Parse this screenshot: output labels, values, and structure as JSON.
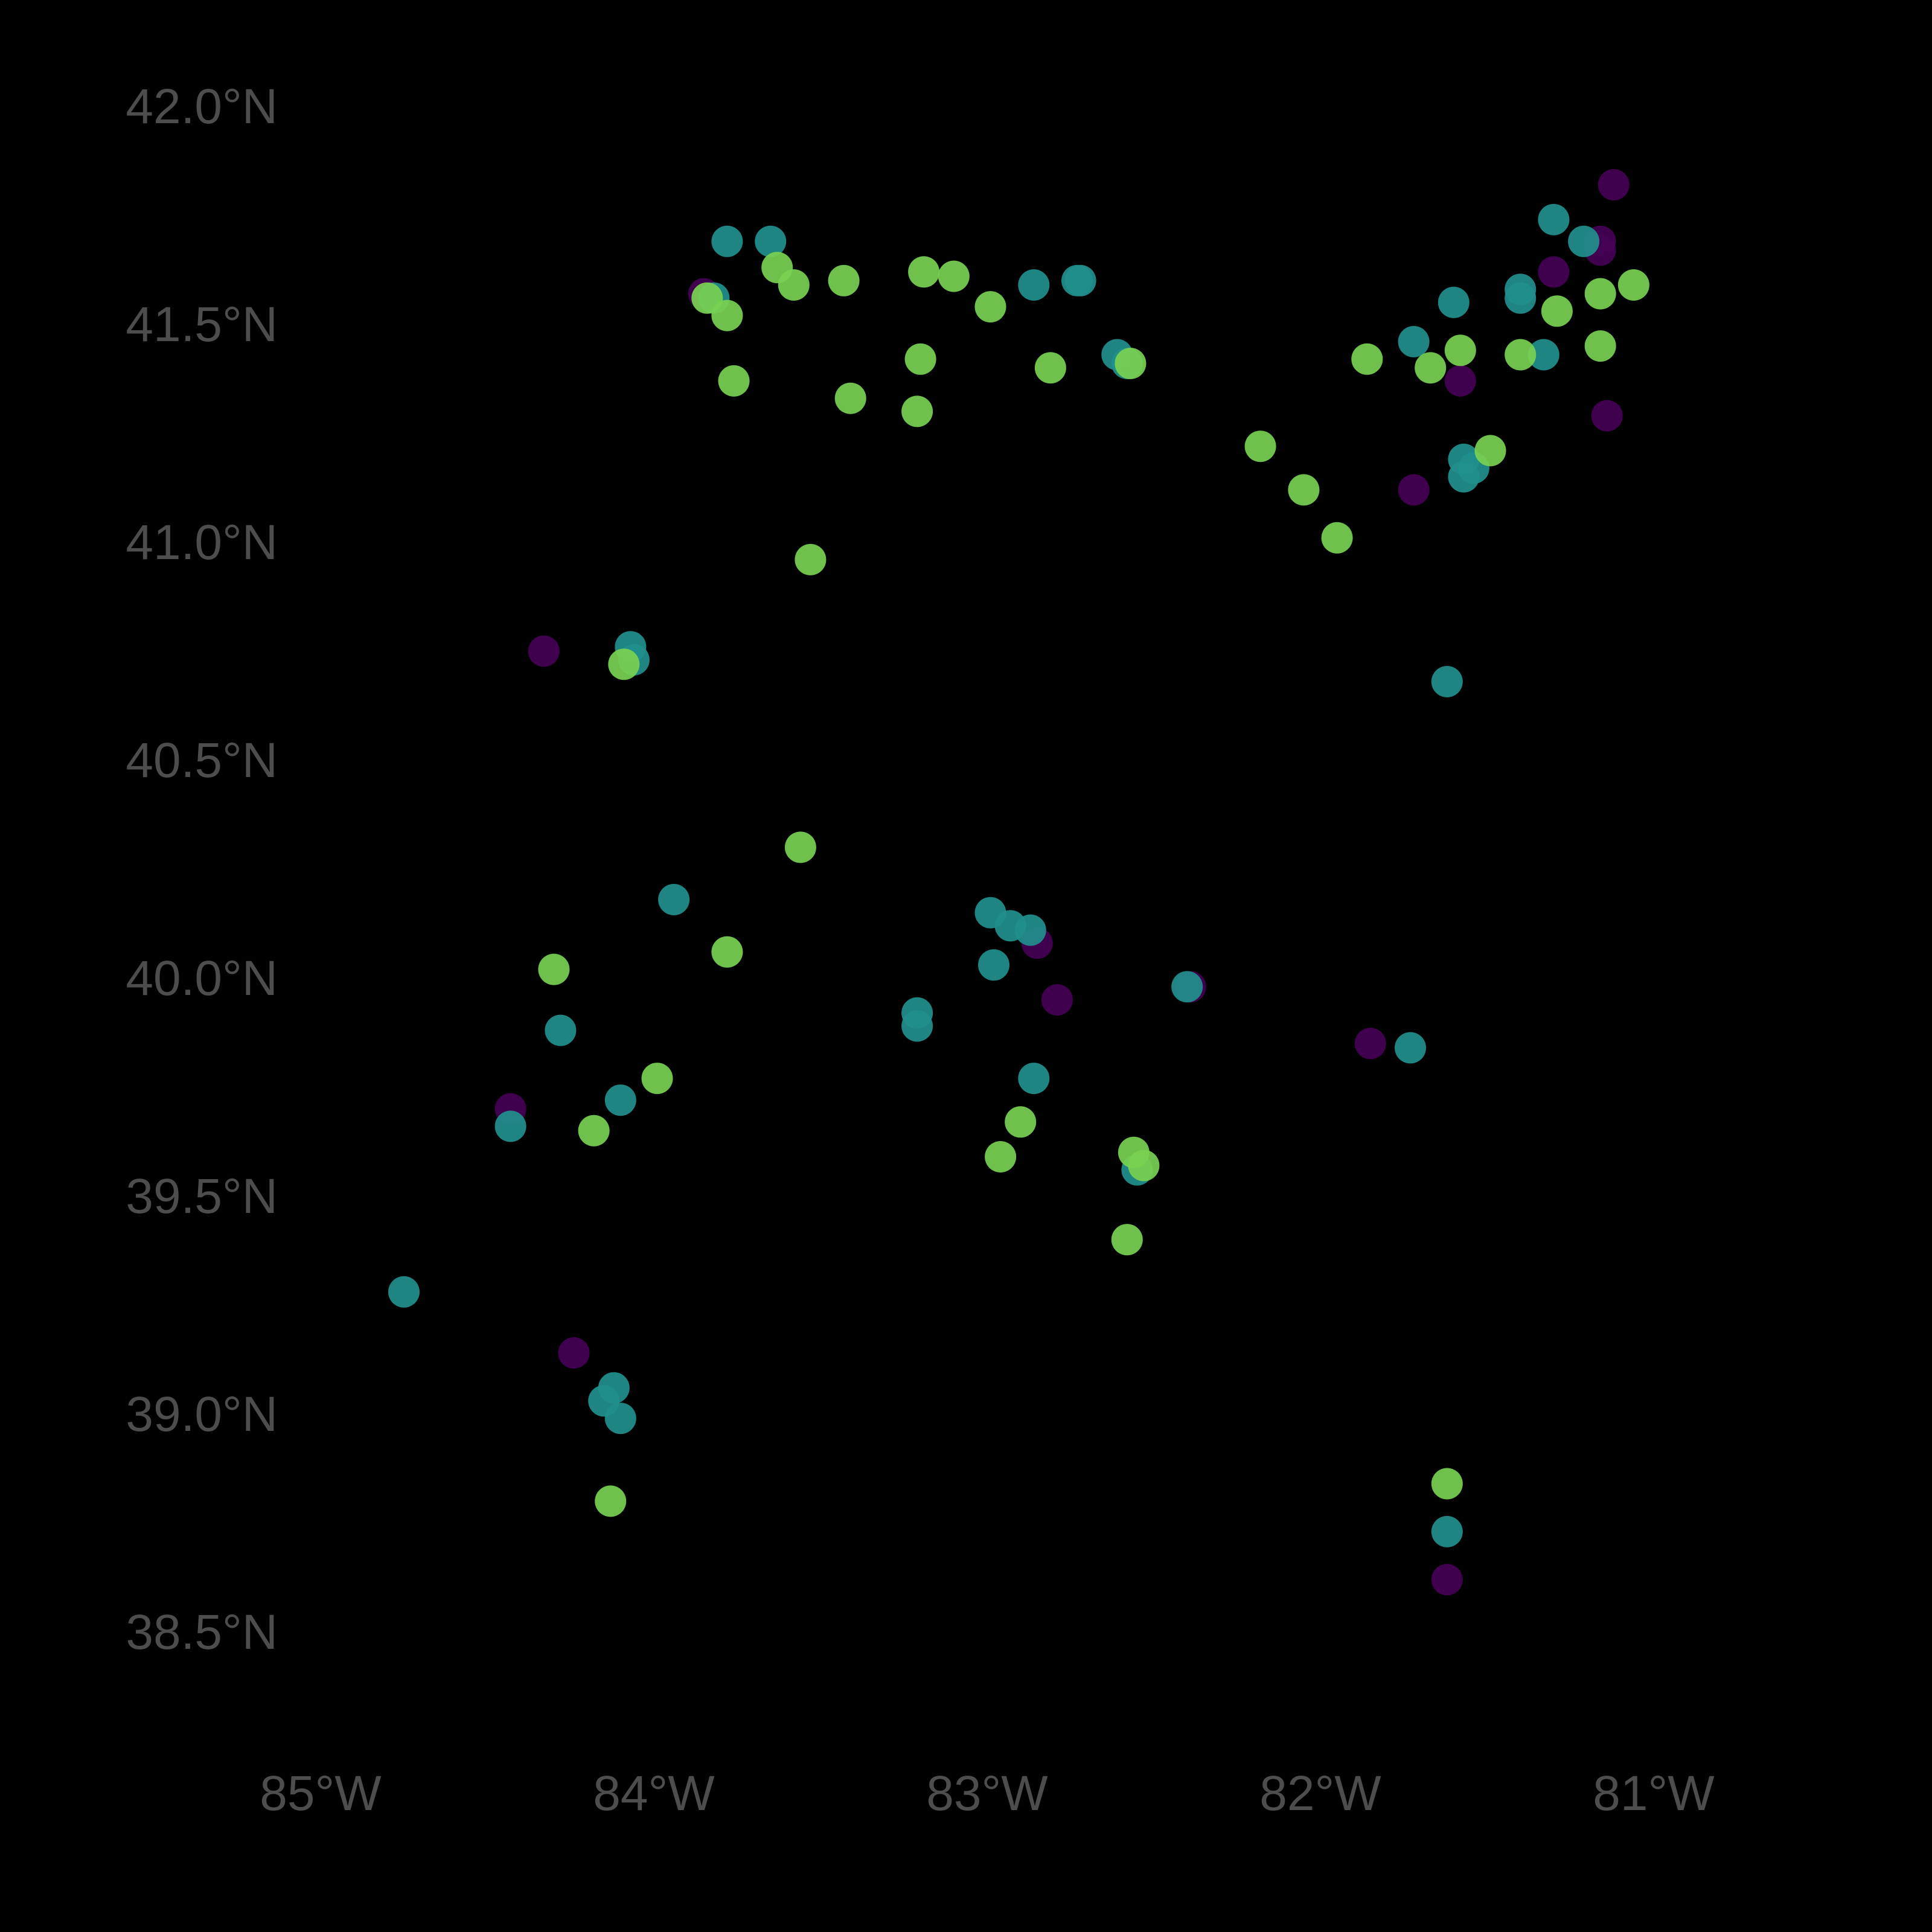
{
  "chart_data": {
    "type": "scatter",
    "title": "",
    "xlabel": "",
    "ylabel": "",
    "xlim": [
      -85.5,
      -80.3
    ],
    "ylim": [
      38.2,
      42.2
    ],
    "grid": false,
    "legend": "none",
    "background": "#000000",
    "x_ticks": [
      {
        "value": -85,
        "label": "85°W"
      },
      {
        "value": -84,
        "label": "84°W"
      },
      {
        "value": -83,
        "label": "83°W"
      },
      {
        "value": -82,
        "label": "82°W"
      },
      {
        "value": -81,
        "label": "81°W"
      }
    ],
    "y_ticks": [
      {
        "value": 42.0,
        "label": "42.0°N"
      },
      {
        "value": 41.5,
        "label": "41.5°N"
      },
      {
        "value": 41.0,
        "label": "41.0°N"
      },
      {
        "value": 40.5,
        "label": "40.5°N"
      },
      {
        "value": 40.0,
        "label": "40.0°N"
      },
      {
        "value": 39.5,
        "label": "39.5°N"
      },
      {
        "value": 39.0,
        "label": "39.0°N"
      },
      {
        "value": 38.5,
        "label": "38.5°N"
      }
    ],
    "group_colors": {
      "low": "#440154",
      "mid": "#21908d",
      "high": "#7ad151"
    },
    "series": [
      {
        "group": "low",
        "points": [
          [
            -81.12,
            41.82
          ],
          [
            -81.16,
            41.69
          ],
          [
            -81.16,
            41.67
          ],
          [
            -81.3,
            41.62
          ],
          [
            -83.85,
            41.57
          ],
          [
            -81.58,
            41.37
          ],
          [
            -81.14,
            41.29
          ],
          [
            -81.72,
            41.12
          ],
          [
            -84.33,
            40.75
          ],
          [
            -82.85,
            40.08
          ],
          [
            -82.79,
            39.95
          ],
          [
            -82.39,
            39.98
          ],
          [
            -81.85,
            39.85
          ],
          [
            -84.43,
            39.7
          ],
          [
            -84.24,
            39.14
          ],
          [
            -81.62,
            38.62
          ]
        ]
      },
      {
        "group": "mid",
        "points": [
          [
            -83.78,
            41.69
          ],
          [
            -83.65,
            41.69
          ],
          [
            -83.82,
            41.56
          ],
          [
            -82.86,
            41.59
          ],
          [
            -82.73,
            41.6
          ],
          [
            -82.72,
            41.6
          ],
          [
            -82.61,
            41.43
          ],
          [
            -82.58,
            41.41
          ],
          [
            -81.3,
            41.74
          ],
          [
            -81.21,
            41.69
          ],
          [
            -81.6,
            41.55
          ],
          [
            -81.72,
            41.46
          ],
          [
            -81.4,
            41.58
          ],
          [
            -81.4,
            41.56
          ],
          [
            -81.33,
            41.43
          ],
          [
            -81.57,
            41.19
          ],
          [
            -81.54,
            41.17
          ],
          [
            -81.57,
            41.15
          ],
          [
            -84.07,
            40.76
          ],
          [
            -84.06,
            40.73
          ],
          [
            -81.62,
            40.68
          ],
          [
            -83.94,
            40.18
          ],
          [
            -82.99,
            40.15
          ],
          [
            -82.93,
            40.12
          ],
          [
            -82.87,
            40.11
          ],
          [
            -82.98,
            40.03
          ],
          [
            -83.21,
            39.92
          ],
          [
            -83.21,
            39.89
          ],
          [
            -82.4,
            39.98
          ],
          [
            -81.73,
            39.84
          ],
          [
            -84.28,
            39.88
          ],
          [
            -84.1,
            39.72
          ],
          [
            -84.43,
            39.66
          ],
          [
            -82.86,
            39.77
          ],
          [
            -82.55,
            39.56
          ],
          [
            -84.75,
            39.28
          ],
          [
            -84.12,
            39.06
          ],
          [
            -84.15,
            39.03
          ],
          [
            -84.1,
            38.99
          ],
          [
            -81.62,
            38.73
          ]
        ]
      },
      {
        "group": "high",
        "points": [
          [
            -83.63,
            41.63
          ],
          [
            -83.58,
            41.59
          ],
          [
            -83.43,
            41.6
          ],
          [
            -83.19,
            41.62
          ],
          [
            -83.1,
            41.61
          ],
          [
            -82.99,
            41.54
          ],
          [
            -83.84,
            41.56
          ],
          [
            -83.78,
            41.52
          ],
          [
            -83.76,
            41.37
          ],
          [
            -83.41,
            41.33
          ],
          [
            -83.2,
            41.42
          ],
          [
            -83.21,
            41.3
          ],
          [
            -82.81,
            41.4
          ],
          [
            -82.57,
            41.41
          ],
          [
            -81.86,
            41.42
          ],
          [
            -81.67,
            41.4
          ],
          [
            -81.58,
            41.44
          ],
          [
            -81.4,
            41.43
          ],
          [
            -81.29,
            41.53
          ],
          [
            -81.16,
            41.57
          ],
          [
            -81.06,
            41.59
          ],
          [
            -81.16,
            41.45
          ],
          [
            -81.49,
            41.21
          ],
          [
            -82.18,
            41.22
          ],
          [
            -82.05,
            41.12
          ],
          [
            -81.95,
            41.01
          ],
          [
            -83.53,
            40.96
          ],
          [
            -84.09,
            40.72
          ],
          [
            -83.56,
            40.3
          ],
          [
            -83.78,
            40.06
          ],
          [
            -84.3,
            40.02
          ],
          [
            -83.99,
            39.77
          ],
          [
            -84.18,
            39.65
          ],
          [
            -82.9,
            39.67
          ],
          [
            -82.96,
            39.59
          ],
          [
            -82.56,
            39.6
          ],
          [
            -82.53,
            39.57
          ],
          [
            -82.58,
            39.4
          ],
          [
            -81.62,
            38.84
          ],
          [
            -84.13,
            38.8
          ]
        ]
      }
    ]
  }
}
